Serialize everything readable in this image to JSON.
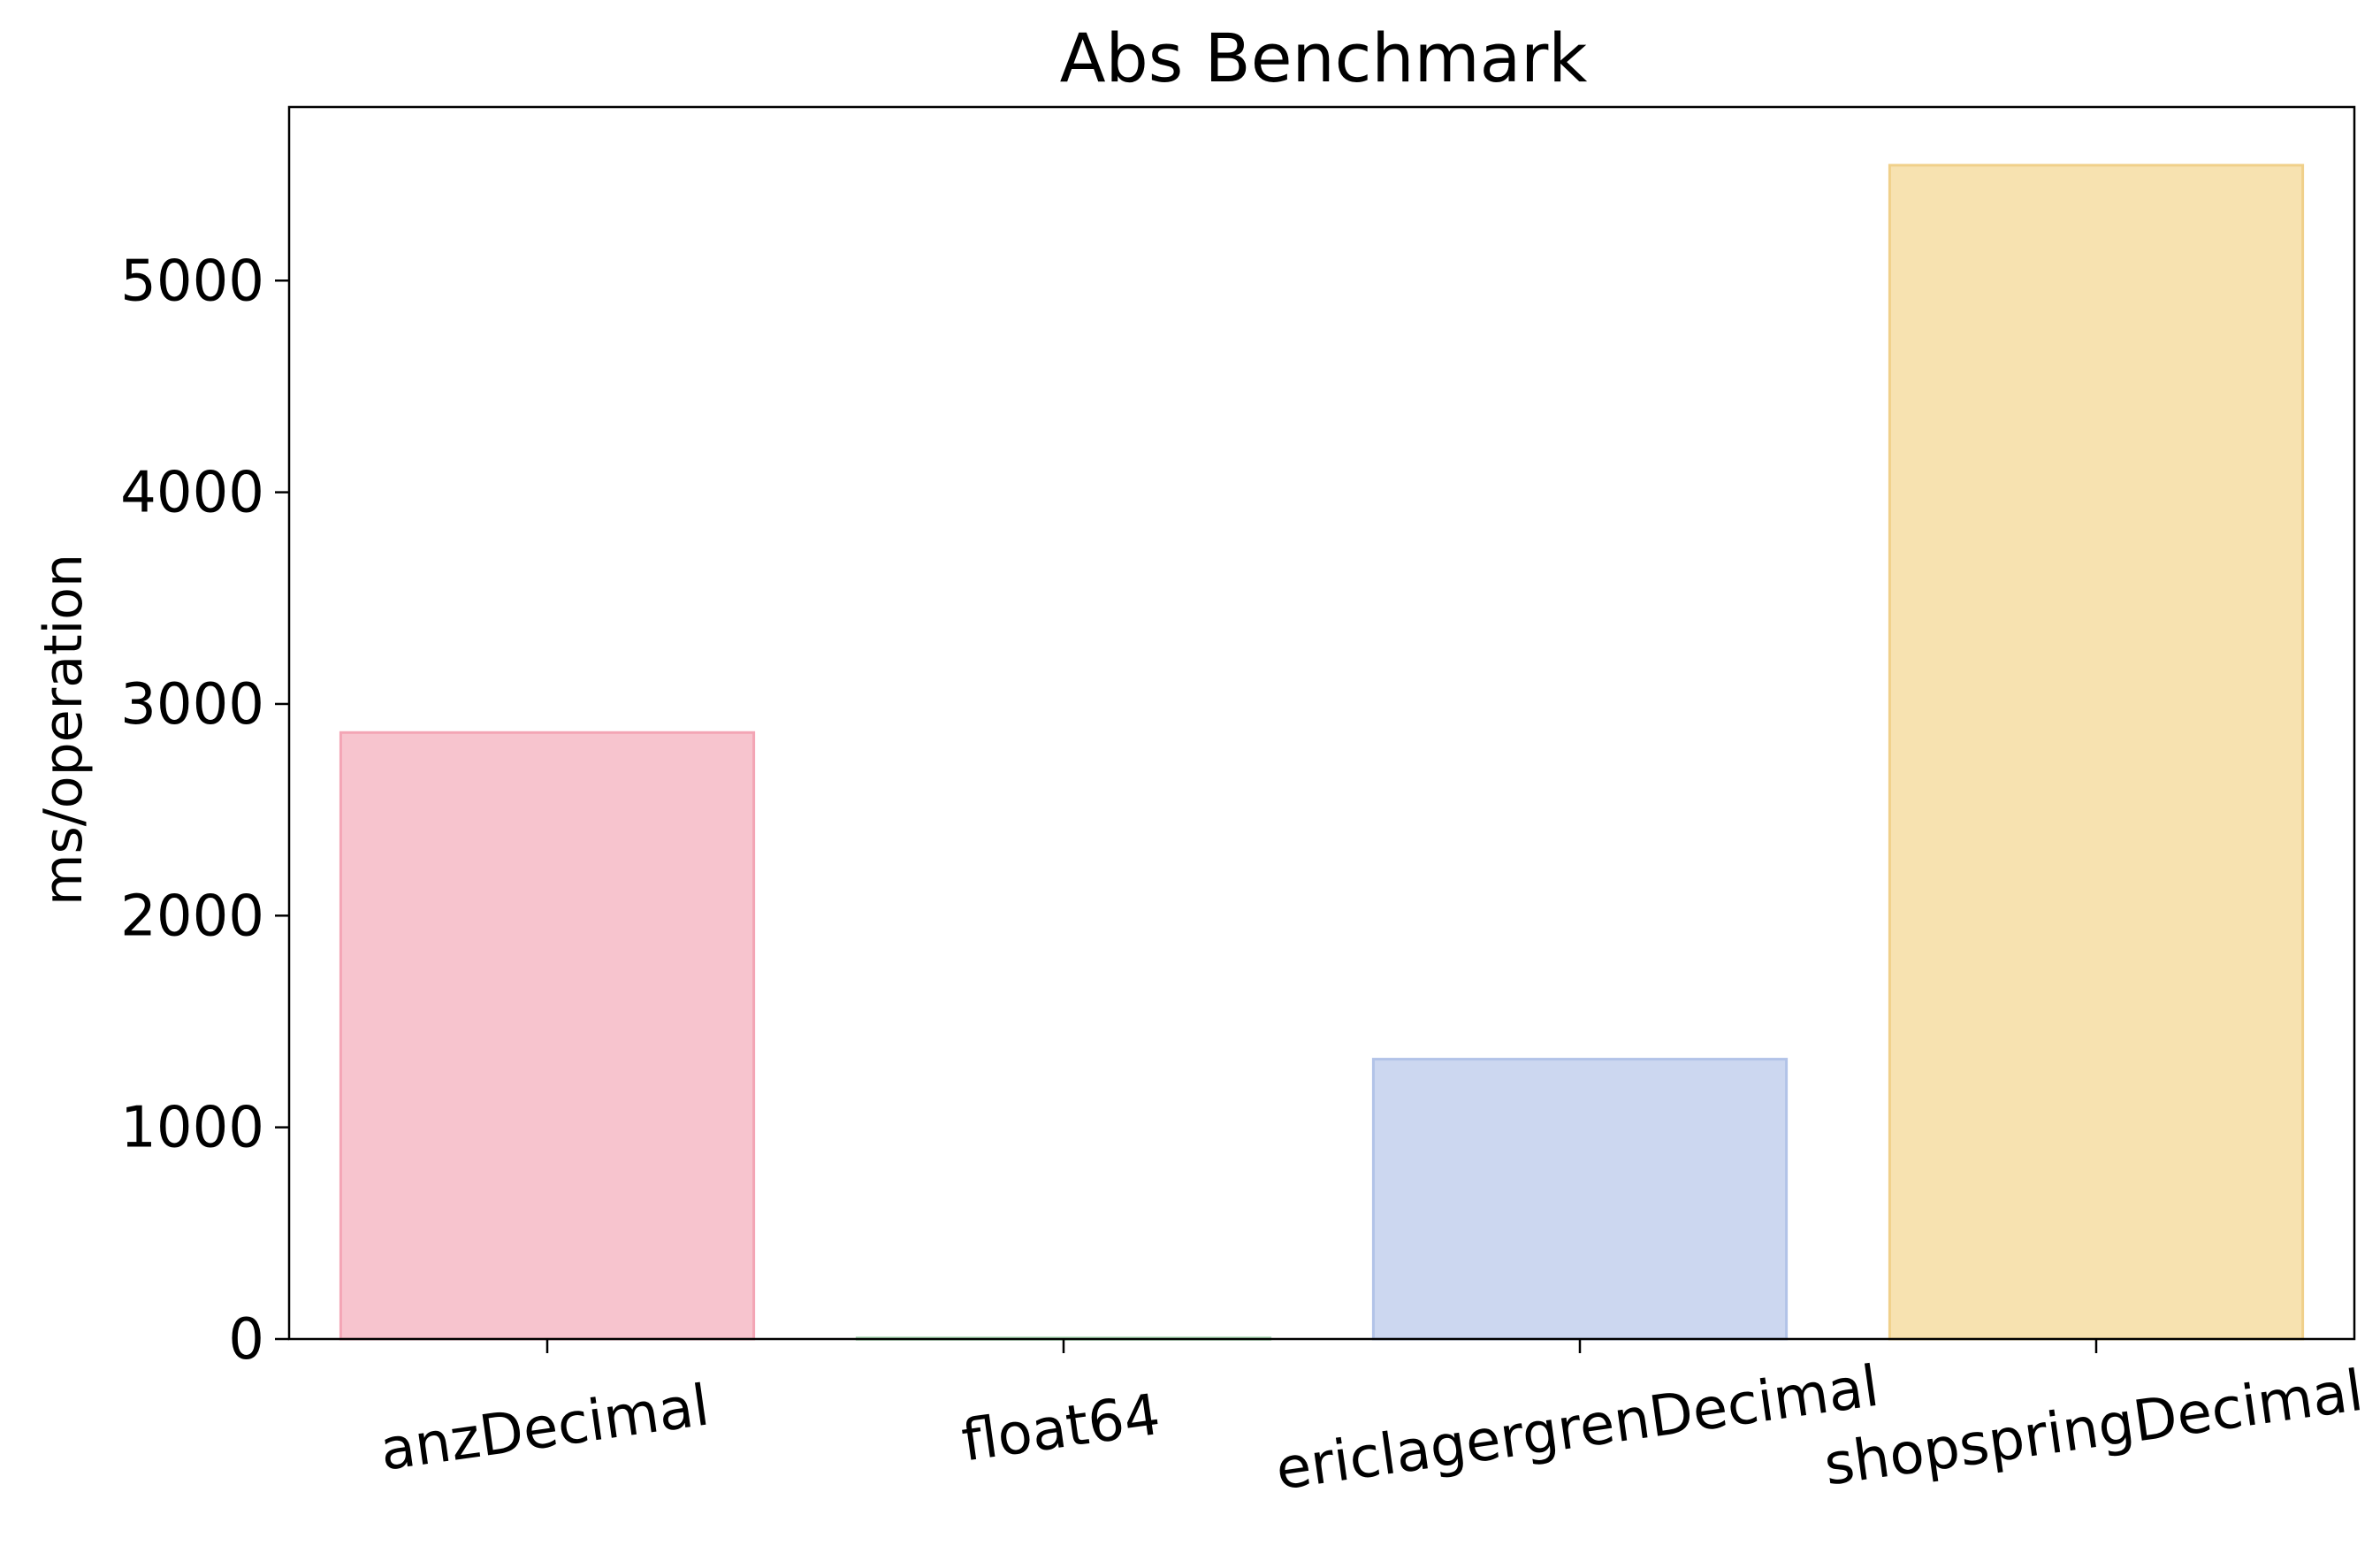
{
  "chart_data": {
    "type": "bar",
    "title": "Abs Benchmark",
    "xlabel": "",
    "ylabel": "ms/operation",
    "categories": [
      "anzDecimal",
      "float64",
      "ericlagergrenDecimal",
      "shopspringDecimal"
    ],
    "values": [
      2865,
      5,
      1322,
      5545
    ],
    "ylim": [
      0,
      5820
    ],
    "yticks": [
      0,
      1000,
      2000,
      3000,
      4000,
      5000
    ],
    "grid": false,
    "legend": "none",
    "colors": [
      "#f7c4ce",
      "#cfe9d4",
      "#ccd7f0",
      "#f7e2b0"
    ],
    "edge_colors": [
      "#f3a5b5",
      "#a8d8b3",
      "#b2c3e8",
      "#f0d08a"
    ]
  }
}
